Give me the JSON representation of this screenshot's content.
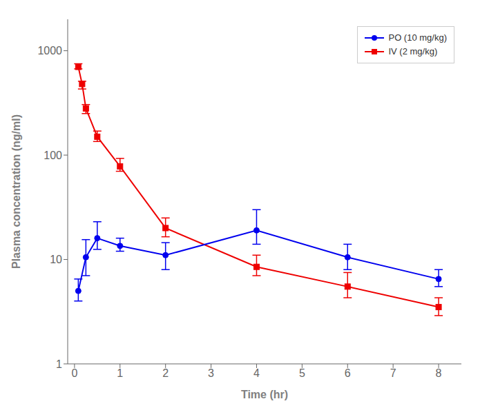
{
  "chart_data": {
    "type": "line",
    "xlabel": "Time (hr)",
    "ylabel": "Plasma concentration (ng/ml)",
    "xlim": [
      -0.15,
      8.5
    ],
    "xticks": [
      0,
      1,
      2,
      3,
      4,
      5,
      6,
      7,
      8
    ],
    "ylim": [
      1,
      2000
    ],
    "yticks": [
      1,
      10,
      100,
      1000
    ],
    "log": "y",
    "legend": "upper right",
    "series": [
      {
        "name": "PO (10 mg/kg)",
        "color": "#0000EE",
        "marker": "circle",
        "x": [
          0.083,
          0.25,
          0.5,
          1.0,
          2.0,
          4.0,
          6.0,
          8.0
        ],
        "values": [
          5.0,
          10.5,
          16.0,
          13.5,
          11.0,
          19.0,
          10.5,
          6.5
        ],
        "error_upper": [
          1.5,
          5.0,
          7.0,
          2.5,
          3.5,
          11.0,
          3.5,
          1.5
        ],
        "error_lower": [
          1.0,
          3.5,
          3.5,
          1.5,
          3.0,
          5.0,
          2.5,
          1.0
        ]
      },
      {
        "name": "IV (2 mg/kg)",
        "color": "#EE0000",
        "marker": "square",
        "x": [
          0.083,
          0.167,
          0.25,
          0.5,
          1.0,
          2.0,
          4.0,
          6.0,
          8.0
        ],
        "values": [
          700,
          480,
          280,
          150,
          78,
          20,
          8.5,
          5.5,
          3.5
        ],
        "error_upper": [
          50,
          30,
          25,
          20,
          15,
          5.0,
          2.5,
          2.0,
          0.8
        ],
        "error_lower": [
          30,
          50,
          30,
          15,
          8,
          3.5,
          1.5,
          1.2,
          0.6
        ]
      }
    ]
  }
}
